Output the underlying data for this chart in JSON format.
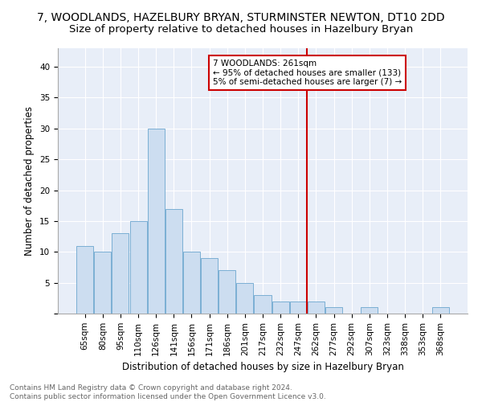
{
  "title": "7, WOODLANDS, HAZELBURY BRYAN, STURMINSTER NEWTON, DT10 2DD",
  "subtitle": "Size of property relative to detached houses in Hazelbury Bryan",
  "xlabel": "Distribution of detached houses by size in Hazelbury Bryan",
  "ylabel": "Number of detached properties",
  "categories": [
    "65sqm",
    "80sqm",
    "95sqm",
    "110sqm",
    "126sqm",
    "141sqm",
    "156sqm",
    "171sqm",
    "186sqm",
    "201sqm",
    "217sqm",
    "232sqm",
    "247sqm",
    "262sqm",
    "277sqm",
    "292sqm",
    "307sqm",
    "323sqm",
    "338sqm",
    "353sqm",
    "368sqm"
  ],
  "values": [
    11,
    10,
    13,
    15,
    30,
    17,
    10,
    9,
    7,
    5,
    3,
    2,
    2,
    2,
    1,
    0,
    1,
    0,
    0,
    0,
    1
  ],
  "bar_color": "#ccddf0",
  "bar_edge_color": "#7bafd4",
  "vline_index": 13,
  "vline_color": "#cc0000",
  "annotation_text": "7 WOODLANDS: 261sqm\n← 95% of detached houses are smaller (133)\n5% of semi-detached houses are larger (7) →",
  "annotation_box_edge_color": "#cc0000",
  "footnote": "Contains HM Land Registry data © Crown copyright and database right 2024.\nContains public sector information licensed under the Open Government Licence v3.0.",
  "ylim": [
    0,
    43
  ],
  "yticks": [
    0,
    5,
    10,
    15,
    20,
    25,
    30,
    35,
    40
  ],
  "background_color": "#e8eef8",
  "title_fontsize": 10,
  "axis_label_fontsize": 8.5,
  "tick_fontsize": 7.5,
  "footnote_fontsize": 6.5
}
